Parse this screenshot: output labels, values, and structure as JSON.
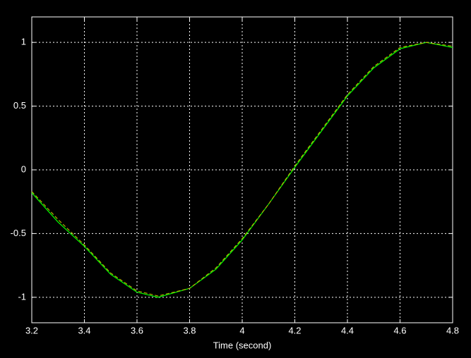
{
  "chart_data": {
    "type": "line",
    "xlabel": "Time (second)",
    "x": [
      3.2,
      3.3,
      3.4,
      3.5,
      3.6,
      3.68,
      3.8,
      3.9,
      4.0,
      4.1,
      4.2,
      4.3,
      4.4,
      4.5,
      4.6,
      4.7,
      4.8
    ],
    "series": [
      {
        "color": "#00ff00",
        "dash": false,
        "values": [
          -0.18,
          -0.41,
          -0.6,
          -0.82,
          -0.96,
          -1.0,
          -0.93,
          -0.78,
          -0.55,
          -0.27,
          0.02,
          0.3,
          0.58,
          0.8,
          0.95,
          1.0,
          0.96
        ]
      },
      {
        "color": "#b0b000",
        "dash": true,
        "values": [
          -0.17,
          -0.39,
          -0.59,
          -0.81,
          -0.95,
          -0.99,
          -0.93,
          -0.77,
          -0.54,
          -0.27,
          0.03,
          0.31,
          0.59,
          0.81,
          0.96,
          1.0,
          0.97
        ]
      }
    ],
    "xlim": [
      3.2,
      4.8
    ],
    "xticks": [
      3.2,
      3.4,
      3.6,
      3.8,
      4,
      4.2,
      4.4,
      4.6,
      4.8
    ],
    "ylim": [
      -1.2,
      1.2
    ],
    "yticks": [
      -1,
      -0.5,
      0,
      0.5,
      1
    ],
    "grid": true
  }
}
